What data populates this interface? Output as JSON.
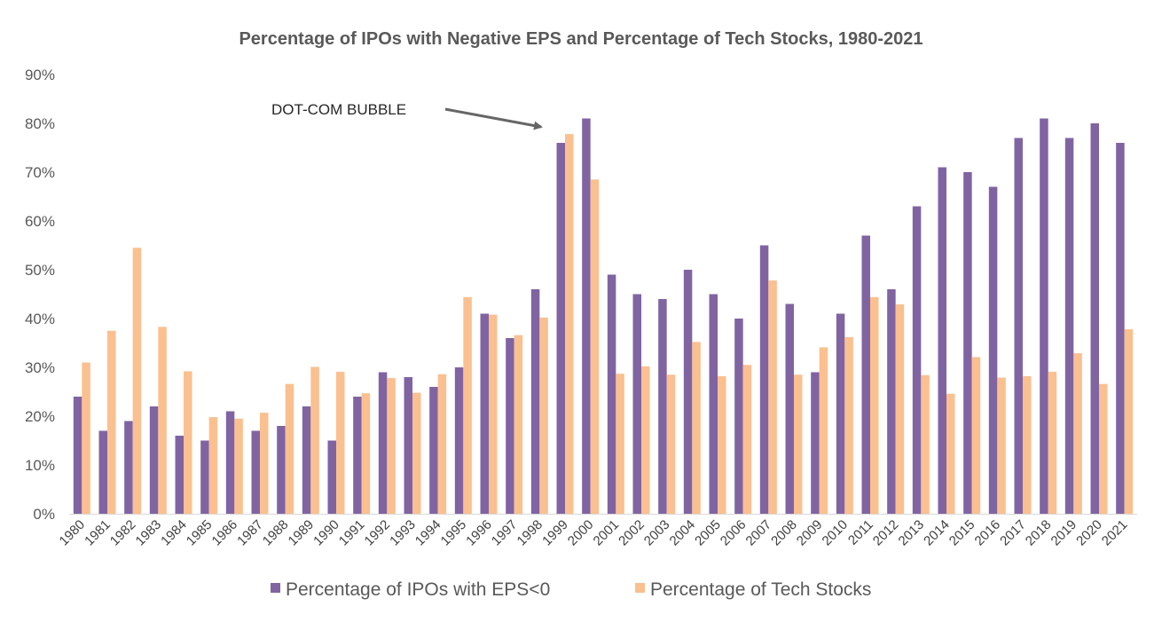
{
  "chart_data": {
    "type": "bar",
    "title": "Percentage of IPOs with Negative EPS and Percentage of Tech Stocks, 1980-2021",
    "xlabel": "",
    "ylabel": "",
    "ylim": [
      0,
      90
    ],
    "yticks": [
      "0%",
      "10%",
      "20%",
      "30%",
      "40%",
      "50%",
      "60%",
      "70%",
      "80%",
      "90%"
    ],
    "grid": false,
    "legend_position": "bottom",
    "categories": [
      "1980",
      "1981",
      "1982",
      "1983",
      "1984",
      "1985",
      "1986",
      "1987",
      "1988",
      "1989",
      "1990",
      "1991",
      "1992",
      "1993",
      "1994",
      "1995",
      "1996",
      "1997",
      "1998",
      "1999",
      "2000",
      "2001",
      "2002",
      "2003",
      "2004",
      "2005",
      "2006",
      "2007",
      "2008",
      "2009",
      "2010",
      "2011",
      "2012",
      "2013",
      "2014",
      "2015",
      "2016",
      "2017",
      "2018",
      "2019",
      "2020",
      "2021"
    ],
    "series": [
      {
        "name": "Percentage of IPOs with EPS<0",
        "color": "#8064a2",
        "values": [
          24,
          17,
          19,
          22,
          16,
          15,
          21,
          17,
          18,
          22,
          15,
          24,
          29,
          28,
          26,
          30,
          41,
          36,
          46,
          76,
          81,
          49,
          45,
          44,
          50,
          45,
          40,
          55,
          43,
          29,
          41,
          57,
          46,
          63,
          71,
          70,
          67,
          77,
          81,
          77,
          80,
          76
        ]
      },
      {
        "name": "Percentage of Tech Stocks",
        "color": "#fac090",
        "values": [
          31,
          37.5,
          54.5,
          38.3,
          29.2,
          19.8,
          19.5,
          20.7,
          26.6,
          30.1,
          29.1,
          24.7,
          27.8,
          24.8,
          28.6,
          44.4,
          40.8,
          36.6,
          40.2,
          77.8,
          68.5,
          28.7,
          30.2,
          28.5,
          35.2,
          28.2,
          30.5,
          47.8,
          28.5,
          34.1,
          36.2,
          44.4,
          42.9,
          28.4,
          24.6,
          32.1,
          27.9,
          28.2,
          29.1,
          32.9,
          26.6,
          37.8
        ]
      }
    ],
    "annotations": [
      {
        "text": "DOT-COM BUBBLE",
        "points_to": "1999"
      }
    ]
  }
}
